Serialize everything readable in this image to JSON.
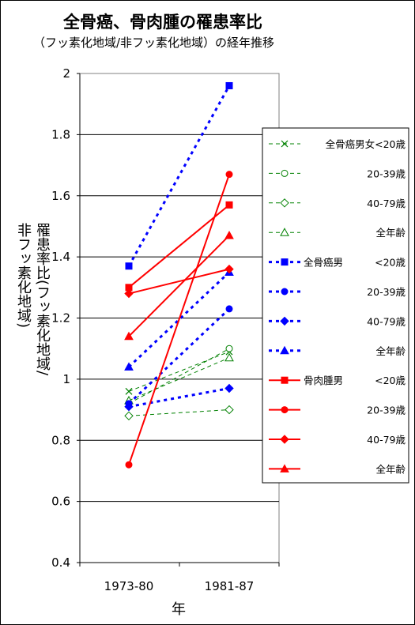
{
  "chart_data": {
    "type": "line",
    "title": "全骨癌、骨肉腫の罹患率比",
    "subtitle": "（フッ素化地域/非フッ素化地域）の経年推移",
    "ylabel_line1": "罹患率比(フッ素化地域/",
    "ylabel_line2": "非フッ素化地域)",
    "xlabel": "年",
    "categories": [
      "1973-80",
      "1981-87"
    ],
    "ylim": [
      0.4,
      2.0
    ],
    "yticks": [
      "0.4",
      "0.6",
      "0.8",
      "1",
      "1.2",
      "1.4",
      "1.6",
      "1.8",
      "2"
    ],
    "grid": true,
    "legend_position": "right",
    "series": [
      {
        "label": "全骨癌男女<20歳",
        "name": "",
        "color": "#008000",
        "dash": "5,4",
        "width": 1,
        "marker": "x",
        "fill": false,
        "values": [
          0.96,
          1.09
        ]
      },
      {
        "label": "20-39歳",
        "name": "",
        "color": "#008000",
        "dash": "5,4",
        "width": 1,
        "marker": "circle",
        "fill": false,
        "values": [
          0.92,
          1.1
        ]
      },
      {
        "label": "40-79歳",
        "name": "",
        "color": "#008000",
        "dash": "5,4",
        "width": 1,
        "marker": "diamond",
        "fill": false,
        "values": [
          0.88,
          0.9
        ]
      },
      {
        "label": "全年齢",
        "name": "",
        "color": "#008000",
        "dash": "5,4",
        "width": 1,
        "marker": "triangle",
        "fill": false,
        "values": [
          0.93,
          1.07
        ]
      },
      {
        "label": "<20歳",
        "name": "全骨癌男",
        "color": "#0000ff",
        "dash": "4,5",
        "width": 3,
        "marker": "square",
        "fill": true,
        "values": [
          1.37,
          1.96
        ]
      },
      {
        "label": "20-39歳",
        "name": "",
        "color": "#0000ff",
        "dash": "4,5",
        "width": 3,
        "marker": "circle",
        "fill": true,
        "values": [
          0.92,
          1.23
        ]
      },
      {
        "label": "40-79歳",
        "name": "",
        "color": "#0000ff",
        "dash": "4,5",
        "width": 3,
        "marker": "diamond",
        "fill": true,
        "values": [
          0.91,
          0.97
        ]
      },
      {
        "label": "全年齢",
        "name": "",
        "color": "#0000ff",
        "dash": "4,5",
        "width": 3,
        "marker": "triangle",
        "fill": true,
        "values": [
          1.04,
          1.35
        ]
      },
      {
        "label": "<20歳",
        "name": "骨肉腫男",
        "color": "#ff0000",
        "dash": "",
        "width": 2,
        "marker": "square",
        "fill": true,
        "values": [
          1.3,
          1.57
        ]
      },
      {
        "label": "20-39歳",
        "name": "",
        "color": "#ff0000",
        "dash": "",
        "width": 2,
        "marker": "circle",
        "fill": true,
        "values": [
          0.72,
          1.67
        ]
      },
      {
        "label": "40-79歳",
        "name": "",
        "color": "#ff0000",
        "dash": "",
        "width": 2,
        "marker": "diamond",
        "fill": true,
        "values": [
          1.28,
          1.36
        ]
      },
      {
        "label": "全年齢",
        "name": "",
        "color": "#ff0000",
        "dash": "",
        "width": 2,
        "marker": "triangle",
        "fill": true,
        "values": [
          1.14,
          1.47
        ]
      }
    ]
  }
}
